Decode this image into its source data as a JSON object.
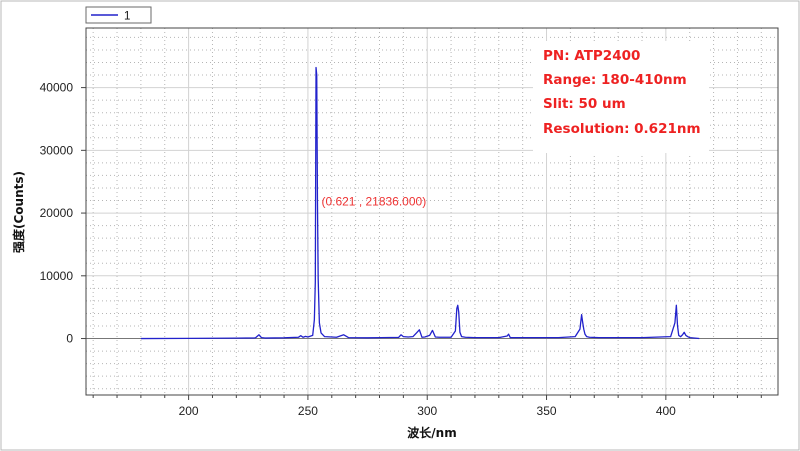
{
  "chart_data": {
    "type": "line",
    "title": "",
    "xlabel": "波长/nm",
    "ylabel": "强度(Counts)",
    "xlim": [
      157,
      447
    ],
    "ylim": [
      -9000,
      49500
    ],
    "x_ticks": [
      200,
      250,
      300,
      350,
      400
    ],
    "y_ticks": [
      0,
      10000,
      20000,
      30000,
      40000
    ],
    "grid": true,
    "legend": {
      "position": "top-left",
      "entries": [
        "1"
      ]
    },
    "series": [
      {
        "name": "1",
        "color": "#2222cc",
        "x": [
          180,
          200,
          220,
          228,
          229.5,
          230.5,
          232,
          240,
          246,
          247,
          248,
          249,
          250,
          252,
          252.7,
          253.1,
          253.4,
          253.7,
          254.0,
          254.3,
          254.8,
          255.5,
          257,
          262,
          265,
          267,
          275,
          288,
          289,
          290,
          292,
          294,
          295.5,
          296.7,
          297.8,
          299,
          301,
          302.2,
          303.4,
          305,
          310,
          311.8,
          312.4,
          312.8,
          313.2,
          313.7,
          314.4,
          316,
          320,
          330,
          333.5,
          334.1,
          334.8,
          340,
          355,
          362,
          364,
          364.7,
          365.1,
          365.6,
          366.1,
          366.8,
          368,
          372,
          390,
          402,
          403.8,
          404.4,
          404.9,
          405.4,
          406.2,
          407,
          407.7,
          408.4,
          409.2,
          410,
          414
        ],
        "y": [
          0,
          20,
          60,
          100,
          600,
          150,
          80,
          120,
          200,
          450,
          200,
          350,
          250,
          500,
          3000,
          9000,
          43200,
          42000,
          21836,
          9500,
          2500,
          900,
          300,
          200,
          600,
          150,
          120,
          180,
          600,
          300,
          250,
          300,
          900,
          1400,
          200,
          250,
          500,
          1300,
          250,
          200,
          200,
          1200,
          4800,
          5300,
          4200,
          1000,
          300,
          200,
          150,
          150,
          400,
          700,
          150,
          150,
          150,
          300,
          1500,
          3800,
          2700,
          1500,
          700,
          300,
          200,
          150,
          150,
          300,
          2500,
          5300,
          2000,
          500,
          300,
          600,
          1000,
          500,
          300,
          150,
          0
        ]
      }
    ],
    "annotations": [
      {
        "text": "(0.621 , 21836.000)",
        "x": 254.0,
        "y": 21836,
        "color": "#ee3333"
      }
    ]
  },
  "info_box": {
    "lines": [
      "PN: ATP2400",
      "Range: 180-410nm",
      "Slit: 50 um",
      "Resolution: 0.621nm"
    ],
    "color": "#ee2222"
  }
}
